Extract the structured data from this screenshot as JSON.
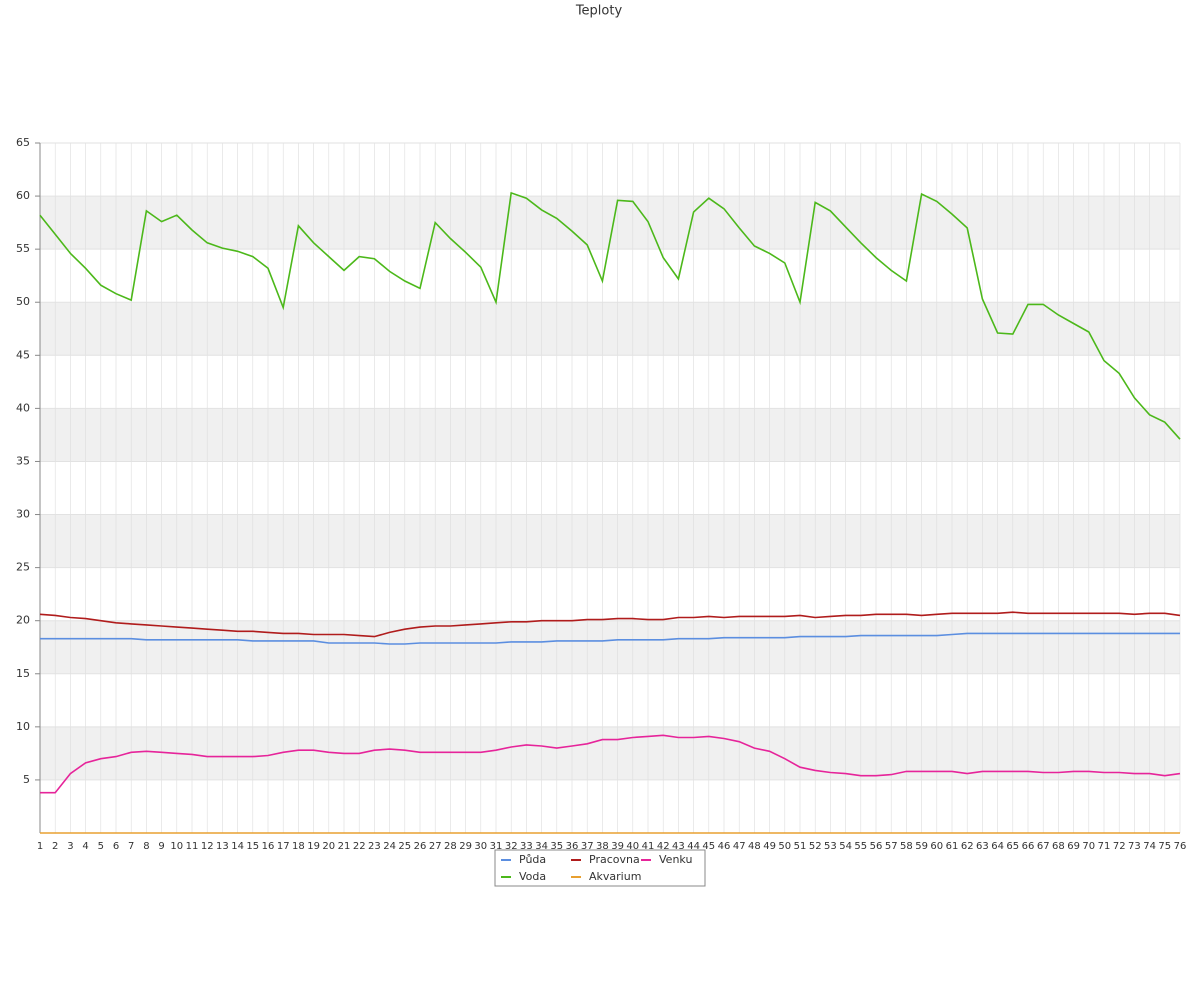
{
  "chart_data": {
    "type": "line",
    "title": "Teploty",
    "categories": [
      "1",
      "2",
      "3",
      "4",
      "5",
      "6",
      "7",
      "8",
      "9",
      "10",
      "11",
      "12",
      "13",
      "14",
      "15",
      "16",
      "17",
      "18",
      "19",
      "20",
      "21",
      "22",
      "23",
      "24",
      "25",
      "26",
      "27",
      "28",
      "29",
      "30",
      "31",
      "32",
      "33",
      "34",
      "35",
      "36",
      "37",
      "38",
      "39",
      "40",
      "41",
      "42",
      "43",
      "44",
      "45",
      "46",
      "47",
      "48",
      "49",
      "50",
      "51",
      "52",
      "53",
      "54",
      "55",
      "56",
      "57",
      "58",
      "59",
      "60",
      "61",
      "62",
      "63",
      "64",
      "65",
      "66",
      "67",
      "68",
      "69",
      "70",
      "71",
      "72",
      "73",
      "74",
      "75",
      "76"
    ],
    "series": [
      {
        "name": "Půda",
        "color": "#5b8ee0",
        "values": [
          18.3,
          18.3,
          18.3,
          18.3,
          18.3,
          18.3,
          18.3,
          18.2,
          18.2,
          18.2,
          18.2,
          18.2,
          18.2,
          18.2,
          18.1,
          18.1,
          18.1,
          18.1,
          18.1,
          17.9,
          17.9,
          17.9,
          17.9,
          17.8,
          17.8,
          17.9,
          17.9,
          17.9,
          17.9,
          17.9,
          17.9,
          18.0,
          18.0,
          18.0,
          18.1,
          18.1,
          18.1,
          18.1,
          18.2,
          18.2,
          18.2,
          18.2,
          18.3,
          18.3,
          18.3,
          18.4,
          18.4,
          18.4,
          18.4,
          18.4,
          18.5,
          18.5,
          18.5,
          18.5,
          18.6,
          18.6,
          18.6,
          18.6,
          18.6,
          18.6,
          18.7,
          18.8,
          18.8,
          18.8,
          18.8,
          18.8,
          18.8,
          18.8,
          18.8,
          18.8,
          18.8,
          18.8,
          18.8,
          18.8,
          18.8,
          18.8
        ]
      },
      {
        "name": "Pracovna",
        "color": "#b01c1c",
        "values": [
          20.6,
          20.5,
          20.3,
          20.2,
          20.0,
          19.8,
          19.7,
          19.6,
          19.5,
          19.4,
          19.3,
          19.2,
          19.1,
          19.0,
          19.0,
          18.9,
          18.8,
          18.8,
          18.7,
          18.7,
          18.7,
          18.6,
          18.5,
          18.9,
          19.2,
          19.4,
          19.5,
          19.5,
          19.6,
          19.7,
          19.8,
          19.9,
          19.9,
          20.0,
          20.0,
          20.0,
          20.1,
          20.1,
          20.2,
          20.2,
          20.1,
          20.1,
          20.3,
          20.3,
          20.4,
          20.3,
          20.4,
          20.4,
          20.4,
          20.4,
          20.5,
          20.3,
          20.4,
          20.5,
          20.5,
          20.6,
          20.6,
          20.6,
          20.5,
          20.6,
          20.7,
          20.7,
          20.7,
          20.7,
          20.8,
          20.7,
          20.7,
          20.7,
          20.7,
          20.7,
          20.7,
          20.7,
          20.6,
          20.7,
          20.7,
          20.5
        ]
      },
      {
        "name": "Venku",
        "color": "#e6249a",
        "values": [
          3.8,
          3.8,
          5.6,
          6.6,
          7.0,
          7.2,
          7.6,
          7.7,
          7.6,
          7.5,
          7.4,
          7.2,
          7.2,
          7.2,
          7.2,
          7.3,
          7.6,
          7.8,
          7.8,
          7.6,
          7.5,
          7.5,
          7.8,
          7.9,
          7.8,
          7.6,
          7.6,
          7.6,
          7.6,
          7.6,
          7.8,
          8.1,
          8.3,
          8.2,
          8.0,
          8.2,
          8.4,
          8.8,
          8.8,
          9.0,
          9.1,
          9.2,
          9.0,
          9.0,
          9.1,
          8.9,
          8.6,
          8.0,
          7.7,
          7.0,
          6.2,
          5.9,
          5.7,
          5.6,
          5.4,
          5.4,
          5.5,
          5.8,
          5.8,
          5.8,
          5.8,
          5.6,
          5.8,
          5.8,
          5.8,
          5.8,
          5.7,
          5.7,
          5.8,
          5.8,
          5.7,
          5.7,
          5.6,
          5.6,
          5.4,
          5.6
        ]
      },
      {
        "name": "Voda",
        "color": "#4cb81a",
        "values": [
          58.2,
          56.4,
          54.6,
          53.2,
          51.6,
          50.8,
          50.2,
          58.6,
          57.6,
          58.2,
          56.8,
          55.6,
          55.1,
          54.8,
          54.3,
          53.2,
          49.5,
          57.2,
          55.6,
          54.3,
          53.0,
          54.3,
          54.1,
          52.9,
          52.0,
          51.3,
          57.5,
          56.0,
          54.7,
          53.3,
          50.0,
          60.3,
          59.8,
          58.7,
          57.9,
          56.7,
          55.4,
          52.0,
          59.6,
          59.5,
          57.6,
          54.2,
          52.2,
          58.5,
          59.8,
          58.8,
          57.0,
          55.3,
          54.6,
          53.7,
          50.0,
          59.4,
          58.6,
          57.1,
          55.6,
          54.2,
          53.0,
          52.0,
          60.2,
          59.5,
          58.3,
          57.0,
          50.3,
          47.1,
          47.0,
          49.8,
          49.8,
          48.8,
          48.0,
          47.2,
          44.5,
          43.3,
          41.0,
          39.4,
          38.7,
          37.1
        ]
      },
      {
        "name": "Akvarium",
        "color": "#e8a030",
        "values": [
          0,
          0,
          0,
          0,
          0,
          0,
          0,
          0,
          0,
          0,
          0,
          0,
          0,
          0,
          0,
          0,
          0,
          0,
          0,
          0,
          0,
          0,
          0,
          0,
          0,
          0,
          0,
          0,
          0,
          0,
          0,
          0,
          0,
          0,
          0,
          0,
          0,
          0,
          0,
          0,
          0,
          0,
          0,
          0,
          0,
          0,
          0,
          0,
          0,
          0,
          0,
          0,
          0,
          0,
          0,
          0,
          0,
          0,
          0,
          0,
          0,
          0,
          0,
          0,
          0,
          0,
          0,
          0,
          0,
          0,
          0,
          0,
          0,
          0,
          0,
          0
        ]
      }
    ],
    "ylim": [
      0,
      65
    ],
    "yticks": [
      5,
      10,
      15,
      20,
      25,
      30,
      35,
      40,
      45,
      50,
      55,
      60,
      65
    ],
    "grid": true,
    "legend": "bottom"
  }
}
